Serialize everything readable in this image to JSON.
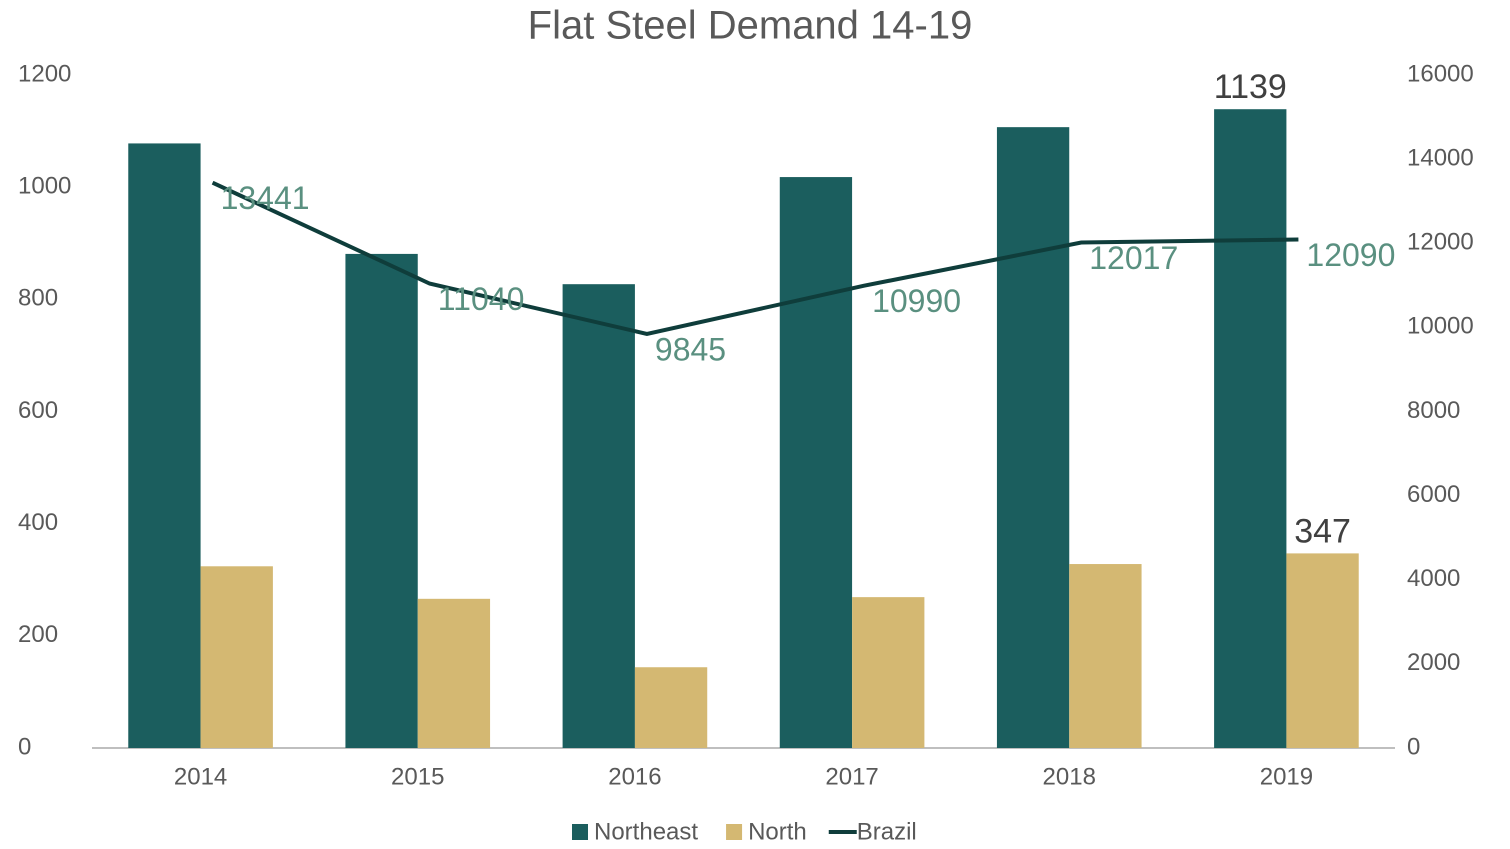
{
  "chart_data": {
    "type": "bar_line",
    "title": "Flat Steel Demand 14-19",
    "categories": [
      "2014",
      "2015",
      "2016",
      "2017",
      "2018",
      "2019"
    ],
    "series": [
      {
        "name": "Northeast",
        "type": "bar",
        "color": "#1b5e5e",
        "values": [
          1078,
          881,
          827,
          1018,
          1107,
          1139
        ],
        "label_indices": [
          5
        ]
      },
      {
        "name": "North",
        "type": "bar",
        "color": "#d4b872",
        "values": [
          324,
          266,
          144,
          269,
          328,
          347
        ],
        "label_indices": [
          5
        ]
      },
      {
        "name": "Brazil",
        "type": "line",
        "axis": "y2",
        "color": "#0f3d3b",
        "label_color": "#5a9080",
        "values": [
          13441,
          11040,
          9845,
          10990,
          12017,
          12090
        ],
        "label_indices": [
          0,
          1,
          2,
          3,
          4,
          5
        ]
      }
    ],
    "ylim": [
      0,
      1200
    ],
    "yticks": [
      0,
      200,
      400,
      600,
      800,
      1000,
      1200
    ],
    "y2lim": [
      0,
      16000
    ],
    "y2ticks": [
      0,
      2000,
      4000,
      6000,
      8000,
      10000,
      12000,
      14000,
      16000
    ],
    "grid": false,
    "legend": "bottom"
  }
}
